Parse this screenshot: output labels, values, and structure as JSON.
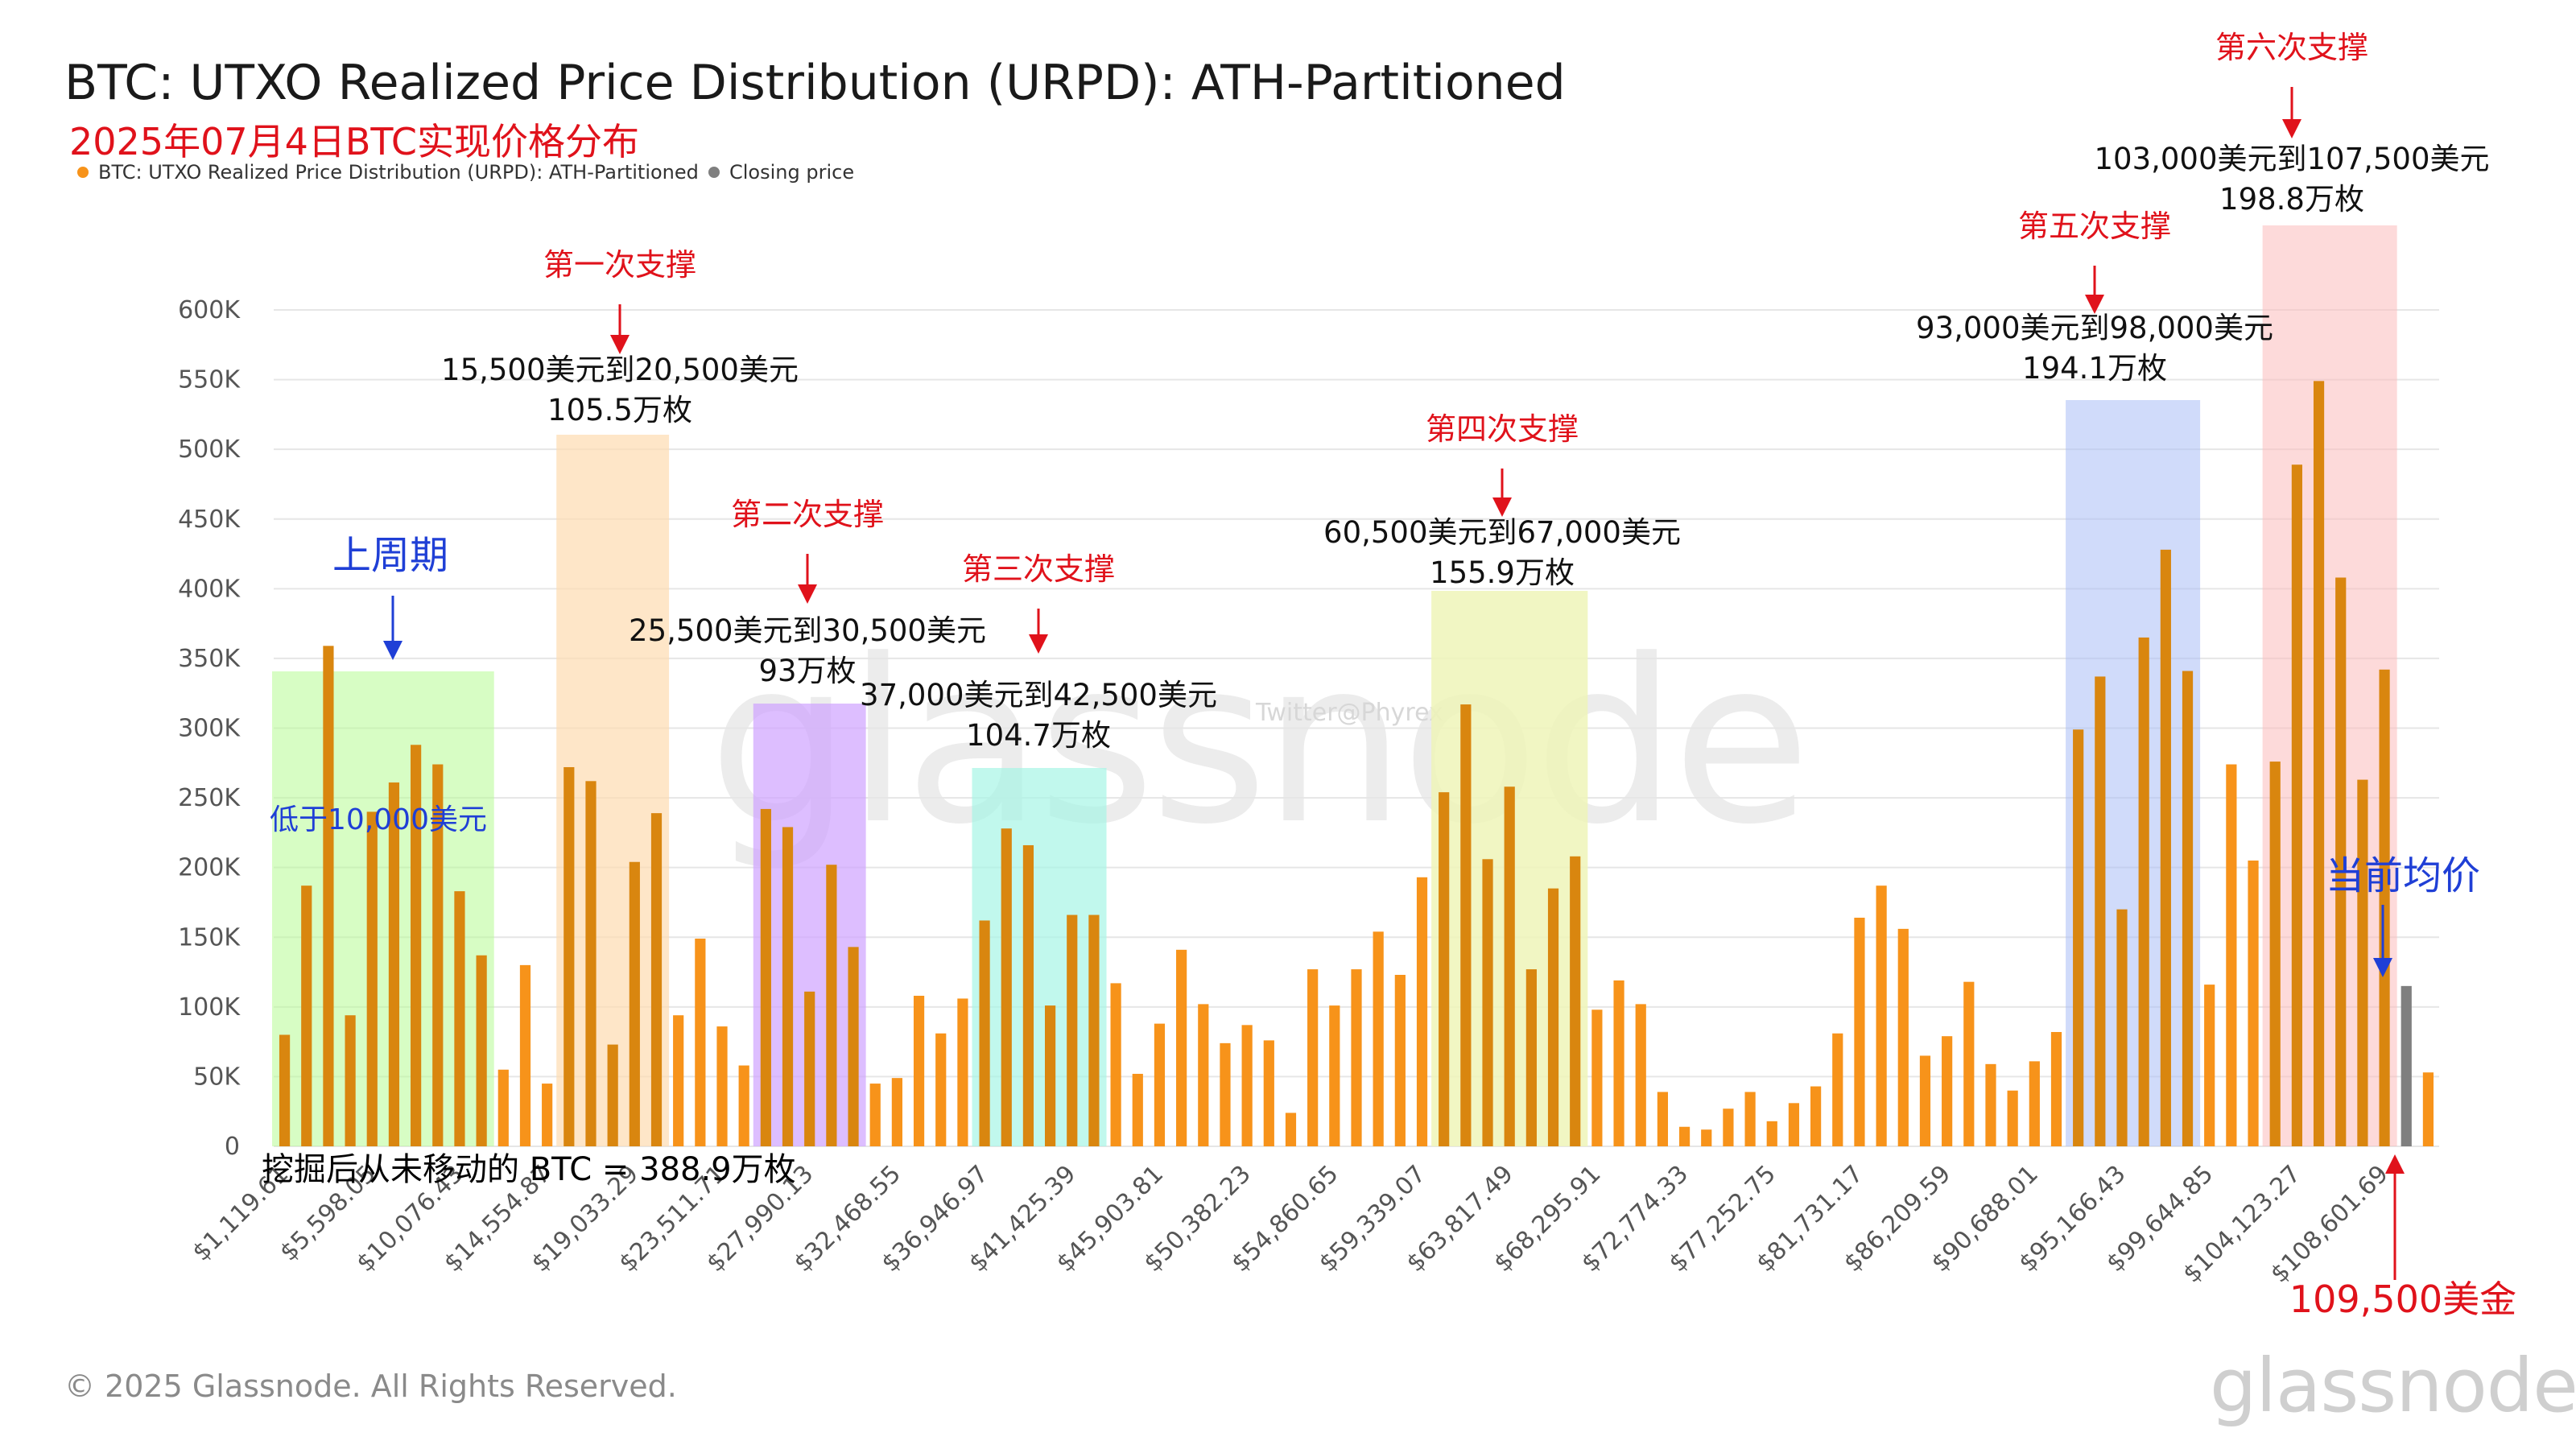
{
  "header": {
    "title": "BTC: UTXO Realized Price Distribution (URPD): ATH-Partitioned",
    "subtitle": "2025年07月4日BTC实现价格分布",
    "legend": [
      {
        "label": "BTC: UTXO Realized Price Distribution (URPD): ATH-Partitioned",
        "color": "#f7931a"
      },
      {
        "label": "Closing price",
        "color": "#7f7f7f"
      }
    ]
  },
  "footer": {
    "copyright": "© 2025 Glassnode. All Rights Reserved.",
    "brand": "glassnode",
    "watermark": "glassnode",
    "twitter_mark": "Twitter@Phyrex"
  },
  "colors": {
    "bar": "#f7931a",
    "bar_in_band": "#d9860f",
    "closing_bar": "#7f7f7f",
    "grid": "#e6e6e6",
    "annotation_red": "#e0121b",
    "annotation_blue": "#1f3fd6"
  },
  "chart_data": {
    "type": "bar",
    "title": "BTC: UTXO Realized Price Distribution (URPD): ATH-Partitioned",
    "ylim": [
      0,
      600000
    ],
    "y_ticks": [
      {
        "value": 0,
        "label": "0"
      },
      {
        "value": 50000,
        "label": "50K"
      },
      {
        "value": 100000,
        "label": "100K"
      },
      {
        "value": 150000,
        "label": "150K"
      },
      {
        "value": 200000,
        "label": "200K"
      },
      {
        "value": 250000,
        "label": "250K"
      },
      {
        "value": 300000,
        "label": "300K"
      },
      {
        "value": 350000,
        "label": "350K"
      },
      {
        "value": 400000,
        "label": "400K"
      },
      {
        "value": 450000,
        "label": "450K"
      },
      {
        "value": 500000,
        "label": "500K"
      },
      {
        "value": 550000,
        "label": "550K"
      },
      {
        "value": 600000,
        "label": "600K"
      }
    ],
    "x_tick_labels": [
      {
        "index": 0,
        "label": "$1,119.61"
      },
      {
        "index": 4,
        "label": "$5,598.05"
      },
      {
        "index": 8,
        "label": "$10,076.43"
      },
      {
        "index": 12,
        "label": "$14,554.87"
      },
      {
        "index": 16,
        "label": "$19,033.29"
      },
      {
        "index": 20,
        "label": "$23,511.71"
      },
      {
        "index": 24,
        "label": "$27,990.13"
      },
      {
        "index": 28,
        "label": "$32,468.55"
      },
      {
        "index": 32,
        "label": "$36,946.97"
      },
      {
        "index": 36,
        "label": "$41,425.39"
      },
      {
        "index": 40,
        "label": "$45,903.81"
      },
      {
        "index": 44,
        "label": "$50,382.23"
      },
      {
        "index": 48,
        "label": "$54,860.65"
      },
      {
        "index": 52,
        "label": "$59,339.07"
      },
      {
        "index": 56,
        "label": "$63,817.49"
      },
      {
        "index": 60,
        "label": "$68,295.91"
      },
      {
        "index": 64,
        "label": "$72,774.33"
      },
      {
        "index": 68,
        "label": "$77,252.75"
      },
      {
        "index": 72,
        "label": "$81,731.17"
      },
      {
        "index": 76,
        "label": "$86,209.59"
      },
      {
        "index": 80,
        "label": "$90,688.01"
      },
      {
        "index": 84,
        "label": "$95,166.43"
      },
      {
        "index": 88,
        "label": "$99,644.85"
      },
      {
        "index": 92,
        "label": "$104,123.27"
      },
      {
        "index": 96,
        "label": "$108,601.69"
      }
    ],
    "values": [
      80000,
      187000,
      359000,
      94000,
      240000,
      261000,
      288000,
      274000,
      183000,
      137000,
      55000,
      130000,
      45000,
      272000,
      262000,
      73000,
      204000,
      239000,
      94000,
      149000,
      86000,
      58000,
      242000,
      229000,
      111000,
      202000,
      143000,
      45000,
      49000,
      108000,
      81000,
      106000,
      162000,
      228000,
      216000,
      101000,
      166000,
      166000,
      117000,
      52000,
      88000,
      141000,
      102000,
      74000,
      87000,
      76000,
      24000,
      127000,
      101000,
      127000,
      154000,
      123000,
      193000,
      254000,
      317000,
      206000,
      258000,
      127000,
      185000,
      208000,
      98000,
      119000,
      102000,
      39000,
      14000,
      12000,
      27000,
      39000,
      18000,
      31000,
      43000,
      81000,
      164000,
      187000,
      156000,
      65000,
      79000,
      118000,
      59000,
      40000,
      61000,
      82000,
      299000,
      337000,
      170000,
      365000,
      428000,
      341000,
      116000,
      274000,
      205000,
      276000,
      489000,
      549000,
      408000,
      263000,
      342000,
      115000,
      53000
    ],
    "closing_index": 97,
    "bands": [
      {
        "from": 0,
        "to": 9,
        "color": "#b7fb93",
        "alpha": 0.55
      },
      {
        "from": 13,
        "to": 17,
        "color": "#fddcb0",
        "alpha": 0.7
      },
      {
        "from": 22,
        "to": 26,
        "color": "#cfa3ff",
        "alpha": 0.7
      },
      {
        "from": 32,
        "to": 37,
        "color": "#a7f5e6",
        "alpha": 0.7
      },
      {
        "from": 53,
        "to": 59,
        "color": "#eef5b8",
        "alpha": 0.85
      },
      {
        "from": 82,
        "to": 87,
        "color": "#a9bdf5",
        "alpha": 0.55
      },
      {
        "from": 91,
        "to": 96,
        "color": "#fbbcbc",
        "alpha": 0.55
      }
    ],
    "annotations": {
      "prev_cycle": {
        "label": "上周期",
        "sub": "低于10,000美元"
      },
      "support1": {
        "label": "第一次支撑",
        "range": "15,500美元到20,500美元",
        "amount": "105.5万枚"
      },
      "support2": {
        "label": "第二次支撑",
        "range": "25,500美元到30,500美元",
        "amount": "93万枚"
      },
      "support3": {
        "label": "第三次支撑",
        "range": "37,000美元到42,500美元",
        "amount": "104.7万枚"
      },
      "support4": {
        "label": "第四次支撑",
        "range": "60,500美元到67,000美元",
        "amount": "155.9万枚"
      },
      "support5": {
        "label": "第五次支撑",
        "range": "93,000美元到98,000美元",
        "amount": "194.1万枚"
      },
      "support6": {
        "label": "第六次支撑",
        "range": "103,000美元到107,500美元",
        "amount": "198.8万枚"
      },
      "current_avg": "当前均价",
      "price_now": "109,500美金",
      "unmoved": "挖掘后从未移动的 BTC = 388.9万枚"
    }
  }
}
